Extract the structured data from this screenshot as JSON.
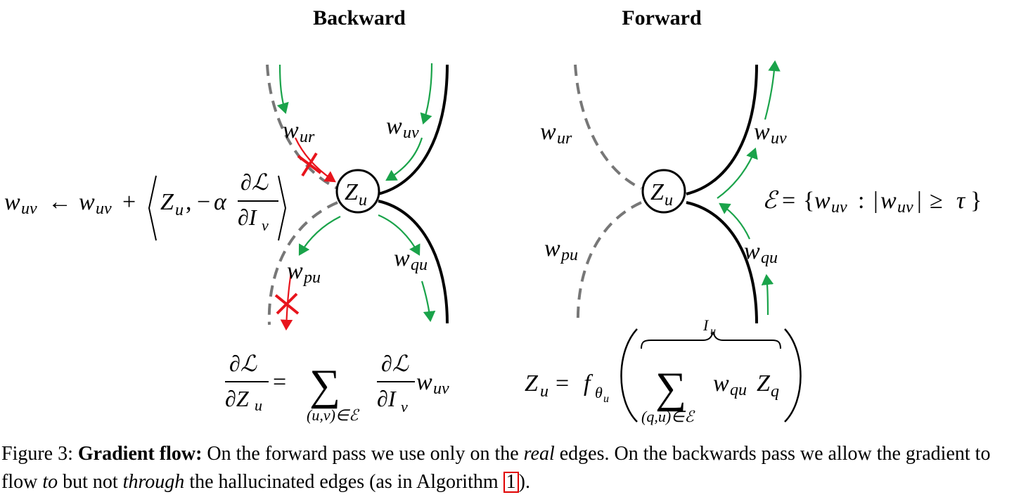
{
  "titles": {
    "backward": "Backward",
    "forward": "Forward"
  },
  "labels": {
    "ur": "w_ur",
    "uv": "w_uv",
    "pu": "w_pu",
    "qu": "w_qu",
    "node": "Z_u"
  },
  "equations": {
    "update_rule": "w_uv ← w_uv + ⟨Z_u, −α ∂ℒ/∂I_v⟩",
    "gradient": "∂ℒ/∂Z_u = Σ_(u,v)∈ℰ ∂ℒ/∂I_v w_uv",
    "edge_set": "ℰ = {w_uv : |w_uv| ≥ τ}",
    "forward": "Z_u = f_θu( Σ_(q,u)∈ℰ w_qu Z_q ), brace label I_u"
  },
  "caption": {
    "prefix": "Figure 3: ",
    "bold": "Gradient flow:",
    "t1": " On the forward pass we use only on the ",
    "i1": "real",
    "t2": " edges. On the backwards pass we allow the gradient to flow ",
    "i2": "to",
    "t3": " but not ",
    "i3": "through",
    "t4": " the hallucinated edges (as in Algorithm ",
    "ref": "1",
    "t5": ")."
  },
  "colors": {
    "gradient": "#1aa34a",
    "blocked": "#e8141c",
    "hallucinated": "#777777",
    "real": "#000000"
  }
}
